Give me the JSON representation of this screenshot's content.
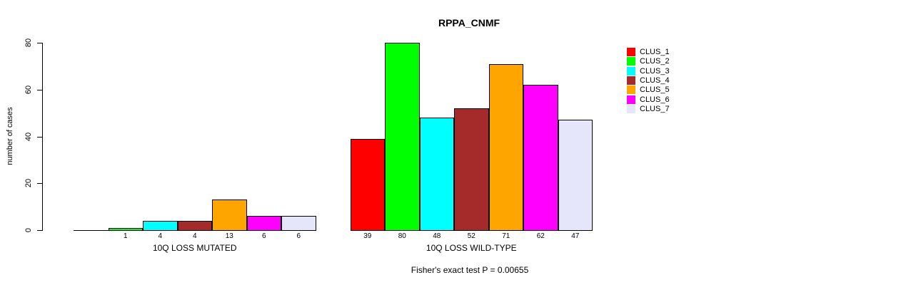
{
  "chart_data": {
    "type": "bar",
    "title": "RPPA_CNMF",
    "ylabel": "number of cases",
    "ylim": [
      0,
      80
    ],
    "yticks": [
      0,
      20,
      40,
      60,
      80
    ],
    "grid": false,
    "legend_position": "right-outside",
    "legend_items": [
      {
        "label": "CLUS_1",
        "color": "#ff0000"
      },
      {
        "label": "CLUS_2",
        "color": "#00ff00"
      },
      {
        "label": "CLUS_3",
        "color": "#00ffff"
      },
      {
        "label": "CLUS_4",
        "color": "#a52a2a"
      },
      {
        "label": "CLUS_5",
        "color": "#ffa500"
      },
      {
        "label": "CLUS_6",
        "color": "#ff00ff"
      },
      {
        "label": "CLUS_7",
        "color": "#e6e6fa"
      }
    ],
    "groups": [
      {
        "label": "10Q LOSS MUTATED",
        "values": [
          0,
          1,
          4,
          4,
          13,
          6,
          6
        ],
        "value_labels": [
          "",
          "1",
          "4",
          "4",
          "13",
          "6",
          "6"
        ]
      },
      {
        "label": "10Q LOSS WILD-TYPE",
        "values": [
          39,
          80,
          48,
          52,
          71,
          62,
          47
        ],
        "value_labels": [
          "39",
          "80",
          "48",
          "52",
          "71",
          "62",
          "47"
        ]
      }
    ],
    "annotation": "Fisher's exact test P = 0.00655"
  }
}
